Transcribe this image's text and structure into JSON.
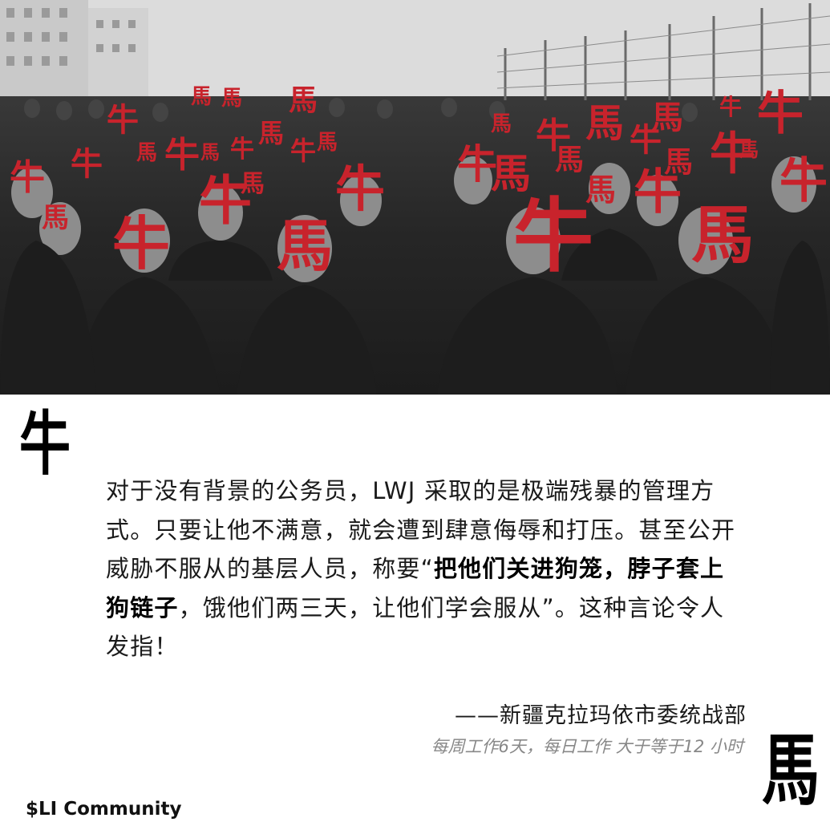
{
  "photo": {
    "overlay_chars": [
      "牛",
      "馬"
    ]
  },
  "decor": {
    "top_char": "牛",
    "bottom_char": "馬"
  },
  "quote": {
    "part1": "对于没有背景的公务员，LWJ 采取的是极端残暴的管理方式。只要让他不满意，就会遭到肆意侮辱和打压。甚至公开威胁不服从的基层人员，称要“",
    "bold": "把他们关进狗笼，脖子套上狗链子",
    "part2": "，饿他们两三天，让他们学会服从”。这种言论令人发指！"
  },
  "attribution": "——新疆克拉玛依市委统战部",
  "note": "每周工作6天，每日工作 大于等于12 小时",
  "footer": {
    "community": "$LI Community"
  },
  "colors": {
    "overlay_red": "#c8232c"
  }
}
